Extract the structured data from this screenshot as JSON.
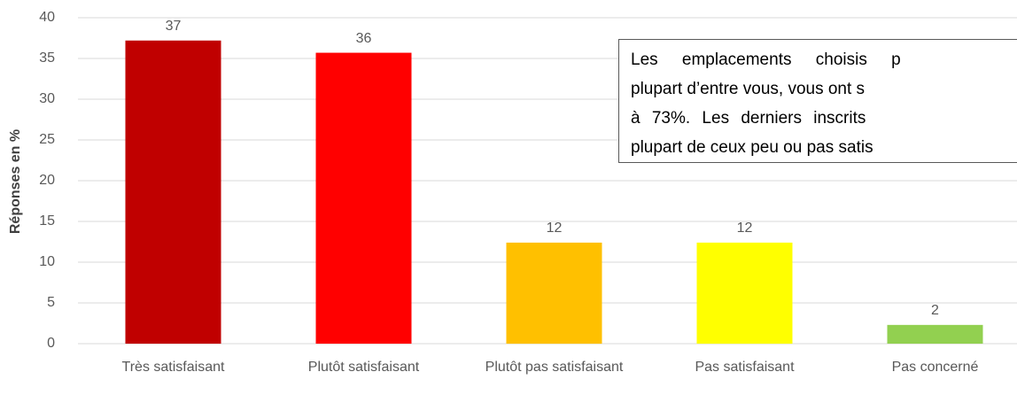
{
  "chart_data": {
    "type": "bar",
    "ylabel": "Réponses en %",
    "categories": [
      "Très satisfaisant",
      "Plutôt satisfaisant",
      "Plutôt pas satisfaisant",
      "Pas satisfaisant",
      "Pas concerné"
    ],
    "values": [
      37.2,
      35.7,
      12.4,
      12.4,
      2.3
    ],
    "value_labels": [
      "37",
      "36",
      "12",
      "12",
      "2"
    ],
    "colors": [
      "#c00000",
      "#ff0000",
      "#ffc000",
      "#ffff00",
      "#92d050"
    ],
    "ylim": [
      0,
      40
    ],
    "yticks": [
      0,
      5,
      10,
      15,
      20,
      25,
      30,
      35,
      40
    ],
    "grid": true,
    "annotation": [
      "Les emplacements choisis p",
      "plupart d’entre vous, vous ont s",
      "à 73%. Les derniers inscrits",
      "plupart de ceux peu ou pas satis"
    ]
  }
}
